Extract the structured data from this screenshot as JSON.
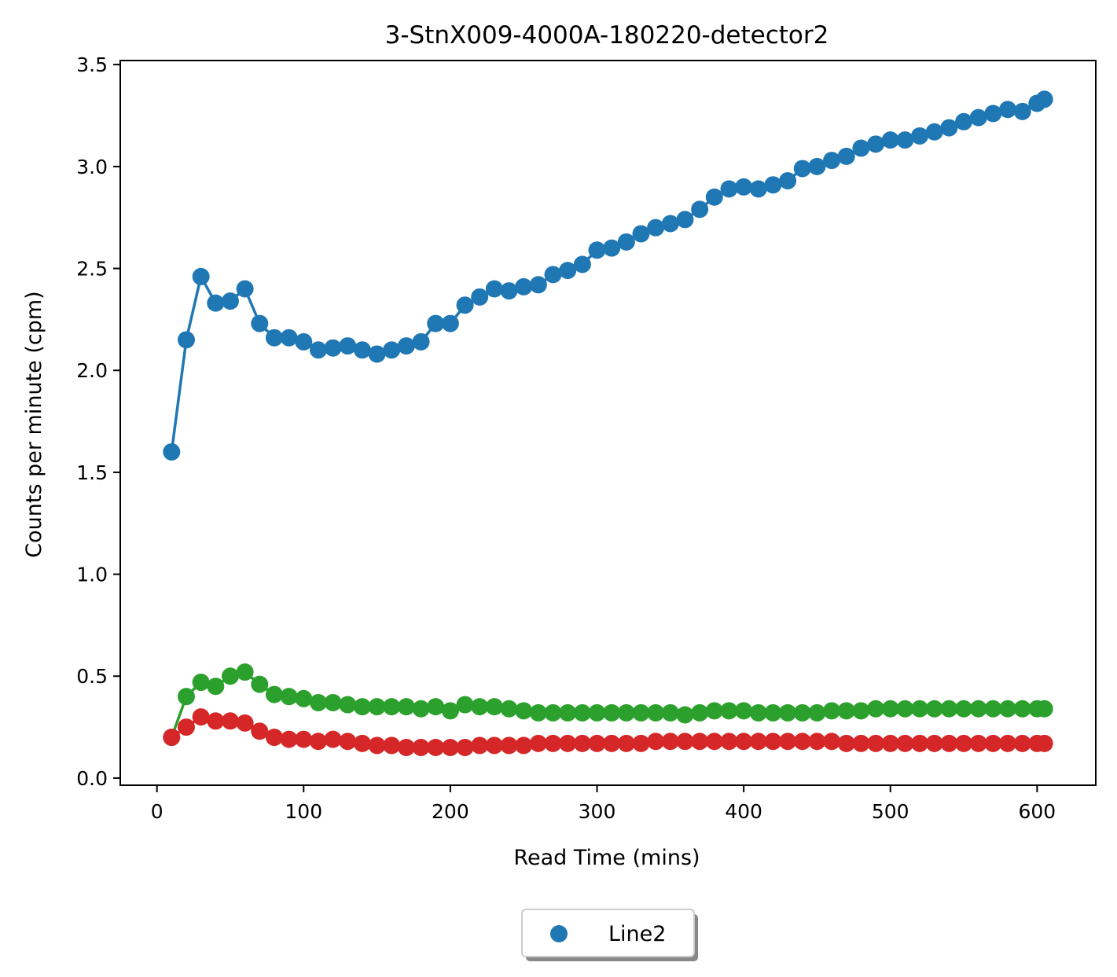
{
  "chart_data": {
    "type": "line",
    "title": "3-StnX009-4000A-180220-detector2",
    "xlabel": "Read Time (mins)",
    "ylabel": "Counts per minute (cpm)",
    "xlim": [
      -25,
      640
    ],
    "ylim": [
      -0.035,
      3.52
    ],
    "xticks": [
      0,
      100,
      200,
      300,
      400,
      500,
      600
    ],
    "yticks": [
      0.0,
      0.5,
      1.0,
      1.5,
      2.0,
      2.5,
      3.0,
      3.5
    ],
    "xtick_labels": [
      "0",
      "100",
      "200",
      "300",
      "400",
      "500",
      "600"
    ],
    "ytick_labels": [
      "0.0",
      "0.5",
      "1.0",
      "1.5",
      "2.0",
      "2.5",
      "3.0",
      "3.5"
    ],
    "grid": false,
    "legend_position": "bottom-center",
    "x": [
      10,
      20,
      30,
      40,
      50,
      60,
      70,
      80,
      90,
      100,
      110,
      120,
      130,
      140,
      150,
      160,
      170,
      180,
      190,
      200,
      210,
      220,
      230,
      240,
      250,
      260,
      270,
      280,
      290,
      300,
      310,
      320,
      330,
      340,
      350,
      360,
      370,
      380,
      390,
      400,
      410,
      420,
      430,
      440,
      450,
      460,
      470,
      480,
      490,
      500,
      510,
      520,
      530,
      540,
      550,
      560,
      570,
      580,
      590,
      600,
      605
    ],
    "series": [
      {
        "name": "Line2",
        "color": "#1f77b4",
        "in_legend": true,
        "values": [
          1.6,
          2.15,
          2.46,
          2.33,
          2.34,
          2.4,
          2.23,
          2.16,
          2.16,
          2.14,
          2.1,
          2.11,
          2.12,
          2.1,
          2.08,
          2.1,
          2.12,
          2.14,
          2.23,
          2.23,
          2.32,
          2.36,
          2.4,
          2.39,
          2.41,
          2.42,
          2.47,
          2.49,
          2.52,
          2.59,
          2.6,
          2.63,
          2.67,
          2.7,
          2.72,
          2.74,
          2.79,
          2.85,
          2.89,
          2.9,
          2.89,
          2.91,
          2.93,
          2.99,
          3.0,
          3.03,
          3.05,
          3.09,
          3.11,
          3.13,
          3.13,
          3.15,
          3.17,
          3.19,
          3.22,
          3.24,
          3.26,
          3.28,
          3.27,
          3.31,
          3.33
        ]
      },
      {
        "color": "#2ca02c",
        "in_legend": false,
        "values": [
          0.2,
          0.4,
          0.47,
          0.45,
          0.5,
          0.52,
          0.46,
          0.41,
          0.4,
          0.39,
          0.37,
          0.37,
          0.36,
          0.35,
          0.35,
          0.35,
          0.35,
          0.34,
          0.35,
          0.33,
          0.36,
          0.35,
          0.35,
          0.34,
          0.33,
          0.32,
          0.32,
          0.32,
          0.32,
          0.32,
          0.32,
          0.32,
          0.32,
          0.32,
          0.32,
          0.31,
          0.32,
          0.33,
          0.33,
          0.33,
          0.32,
          0.32,
          0.32,
          0.32,
          0.32,
          0.33,
          0.33,
          0.33,
          0.34,
          0.34,
          0.34,
          0.34,
          0.34,
          0.34,
          0.34,
          0.34,
          0.34,
          0.34,
          0.34,
          0.34,
          0.34
        ]
      },
      {
        "color": "#d62728",
        "in_legend": false,
        "values": [
          0.2,
          0.25,
          0.3,
          0.28,
          0.28,
          0.27,
          0.23,
          0.2,
          0.19,
          0.19,
          0.18,
          0.19,
          0.18,
          0.17,
          0.16,
          0.16,
          0.15,
          0.15,
          0.15,
          0.15,
          0.15,
          0.16,
          0.16,
          0.16,
          0.16,
          0.17,
          0.17,
          0.17,
          0.17,
          0.17,
          0.17,
          0.17,
          0.17,
          0.18,
          0.18,
          0.18,
          0.18,
          0.18,
          0.18,
          0.18,
          0.18,
          0.18,
          0.18,
          0.18,
          0.18,
          0.18,
          0.17,
          0.17,
          0.17,
          0.17,
          0.17,
          0.17,
          0.17,
          0.17,
          0.17,
          0.17,
          0.17,
          0.17,
          0.17,
          0.17,
          0.17
        ]
      }
    ]
  },
  "legend": {
    "items": [
      {
        "label": "Line2",
        "color": "#1f77b4"
      }
    ]
  }
}
